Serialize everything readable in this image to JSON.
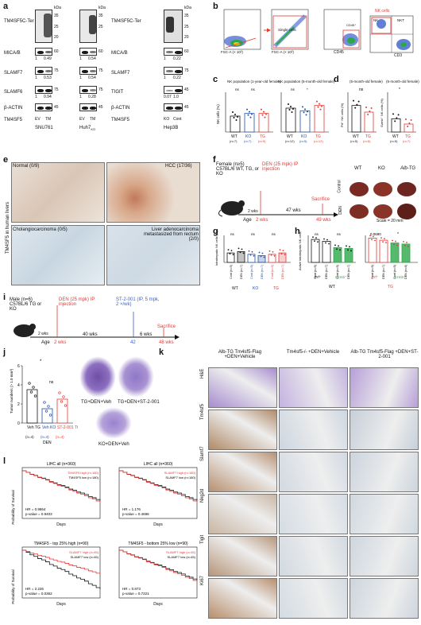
{
  "panel_letters": [
    "a",
    "b",
    "c",
    "d",
    "e",
    "f",
    "g",
    "h",
    "i",
    "j",
    "k",
    "l"
  ],
  "panel_a": {
    "kda_label": "kDa",
    "proteins_left": [
      "TM4SF5C-Ter",
      "MICA/B",
      "SLAMF7",
      "SLAMF6",
      "β-ACTIN"
    ],
    "proteins_right": [
      "TM4SF5C-Ter",
      "MICA/B",
      "SLAMF7",
      "TIGIT",
      "β-ACTIN"
    ],
    "markers_1": [
      "35",
      "25",
      "20",
      "60",
      "75",
      "75",
      "45"
    ],
    "markers_2": [
      "35",
      "25",
      "60",
      "75",
      "75",
      "45"
    ],
    "markers_3": [
      "35",
      "25",
      "20",
      "60",
      "75",
      "45",
      "45"
    ],
    "ratios": {
      "snu761_mica": [
        "1",
        "0.49"
      ],
      "snu761_slamf7": [
        "1",
        "0.53"
      ],
      "snu761_slamf6": [
        "1",
        "0.94"
      ],
      "huh7_mica": [
        "1",
        "0.54"
      ],
      "huh7_slamf7": [
        "1",
        "0.54"
      ],
      "huh7_slamf6": [
        "1",
        "0.28"
      ],
      "hep3b_mica": [
        "1",
        "0.22"
      ],
      "hep3b_slamf7": [
        "1",
        "0.22"
      ],
      "hep3b_tigit": [
        "0.07",
        "1.0"
      ]
    },
    "row_label": "TM4SF5",
    "lanes": [
      "EV",
      "TM",
      "EV",
      "TM",
      "KO",
      "Cont"
    ],
    "cell_lines": [
      "SNU761",
      "Huh7",
      "Hep3B"
    ],
    "huh7_sub": "KO"
  },
  "panel_b": {
    "gate1_y": "SSC-A (× 10²)",
    "gate1_x": "FSC-A (× 10²)",
    "gate2_y": "FSC-H (× 10²)",
    "gate2_x": "FSC-A (× 10²)",
    "gate2_label": "Single cells",
    "gate3_y": "SSC-A (× 10²)",
    "gate3_x": "CD45",
    "gate3_label": "CD45⁺",
    "gate4_y": "NK1.1",
    "gate4_x": "CD3",
    "gate4_title": "NK cells",
    "gate4_q": [
      "NK",
      "NKT"
    ]
  },
  "panel_c": {
    "titles": [
      "NK population (1-year-old female)",
      "NK population (5-month-old female)"
    ],
    "ylabel": "NK cells (%)",
    "groups": [
      "WT",
      "KO",
      "TG"
    ],
    "n1": [
      "(n=7)",
      "(n=7)",
      "(n=9)"
    ],
    "n2": [
      "(n=12)",
      "(n=5)",
      "(n=12)"
    ],
    "sig": [
      "ns",
      "ns",
      "ns",
      "*"
    ]
  },
  "panel_d": {
    "title": "(5-month-old female)",
    "ylabels": [
      "Prf⁺ NK cells (%)",
      "Gzmb⁺ NK cells (%)"
    ],
    "groups": [
      "WT",
      "TG"
    ],
    "n": [
      "(n=5)",
      "(n=6)",
      "(n=5)",
      "(n=7)"
    ],
    "sig": [
      "ns",
      "*"
    ]
  },
  "panel_e": {
    "side": "TM4SF5 in human livers",
    "captions": [
      "Normal (0/9)",
      "HCC (17/36)",
      "Cholangiocarcinoma (0/5)",
      "Liver adenocarcinoma metastasized from rectum (2/0)"
    ]
  },
  "panel_f": {
    "mouse": "Female (n≥5) C57BL/6 WT, TG, or KO",
    "treat": "DEN (25 mpk) IP injection",
    "timeline": [
      "2 wks",
      "47 wks",
      "Sacrifice"
    ],
    "ages": [
      "Age",
      "2 wks",
      "49 wks"
    ],
    "cols": [
      "WT",
      "KO",
      "Alb-TG"
    ],
    "rows": [
      "Control",
      "DEN"
    ],
    "scale": "Scale = 20 mm"
  },
  "panel_g": {
    "ylabel": "Intrahepatic NK cells (%)",
    "bars": [
      "Cont (n=5)",
      "DEN (n=7)",
      "Cont (n=5)",
      "DEN (n=7)",
      "Cont (n=5)",
      "DEN (n=7)"
    ],
    "groups": [
      "WT",
      "KO",
      "TG"
    ],
    "values": [
      7,
      8,
      6,
      5,
      6,
      7
    ],
    "sig": [
      "ns",
      "ns",
      "ns"
    ]
  },
  "panel_h": {
    "ylabel": "Active intrahepatic NK cells (%)",
    "bars_wt": [
      "Cont (n=5)",
      "DEN (n=7)",
      "Cont (n=5)",
      "DEN (n=7)"
    ],
    "bars_tg": [
      "Cont (n=5)",
      "DEN (n=7)",
      "Cont (n=5)",
      "DEN (n=6)"
    ],
    "markers": [
      "Prf⁺",
      "Gzmb⁺"
    ],
    "groups": [
      "WT",
      "TG"
    ],
    "values_wt": [
      85,
      78,
      55,
      52
    ],
    "values_tg": [
      90,
      82,
      72,
      68
    ],
    "sig": [
      "ns",
      "ns",
      "0.0690",
      "*"
    ]
  },
  "panel_i": {
    "mouse": "Male (n=6) C57BL/6 TG or KO",
    "den": "DEN (25 mpk) IP injection",
    "drug": "ST-2-001 (IP, 5 mpk, 2 ×/wk)",
    "timeline": [
      "2 wks",
      "40 wks",
      "6 wks",
      "Sacrifice"
    ],
    "ages": [
      "Age",
      "2 wks",
      "42",
      "48 wks"
    ]
  },
  "panel_j": {
    "ylabel": "Tumor numbers (> 1.0 mm³)",
    "groups": [
      "Veh TG",
      "Veh KO",
      "ST-2-001 TG"
    ],
    "n": [
      "(n=4)",
      "(n=4)",
      "(n=4)"
    ],
    "xgroup": "DEN",
    "values": [
      3.5,
      1.5,
      2.5
    ],
    "sig": [
      "*",
      "ns"
    ],
    "captions": [
      "TG+DEN+Veh",
      "TG+DEN+ST-2-001",
      "KO+DEN+Veh"
    ],
    "yticks": [
      "0",
      "2",
      "4",
      "6"
    ]
  },
  "panel_k": {
    "cols": [
      "Alb-TG Tm4sf5-Flag +DEN+Vehicle",
      "Tm4sf5-/- +DEN+Vehicle",
      "Alb-TG Tm4sf5-Flag +DEN+ST-2-001"
    ],
    "rows": [
      "H&E",
      "Tm4sf5",
      "Slamf7",
      "Nkg2d",
      "Tigit",
      "Ki67"
    ]
  },
  "panel_l": {
    "plots": [
      {
        "title": "LIHC all (n=360)",
        "l1": "TM4SF5 high (n=180)",
        "l2": "TM4SF5 low (n=180)",
        "hr": "HR = 0.9864",
        "p": "p-value = 0.9403"
      },
      {
        "title": "LIHC all (n=360)",
        "l1": "SLAMF7 high (n=180)",
        "l2": "SLAMF7 low (n=180)",
        "hr": "HR = 1.176",
        "p": "p-value = 0.4696"
      },
      {
        "title": "TM4SF5 - top 25% high (n=90)",
        "l1": "SLAMF7 high (n=45)",
        "l2": "SLAMF7 low (n=45)",
        "hr": "HR = 2.226",
        "p": "p-value = 0.0362"
      },
      {
        "title": "TM4SF5 - bottom 25% low (n=90)",
        "l1": "SLAMF7 high (n=45)",
        "l2": "SLAMF7 low (n=45)",
        "hr": "HR = 0.873",
        "p": "p-value = 0.7221"
      }
    ],
    "ylabel": "Probability of Survival",
    "xlabel": "Days"
  }
}
